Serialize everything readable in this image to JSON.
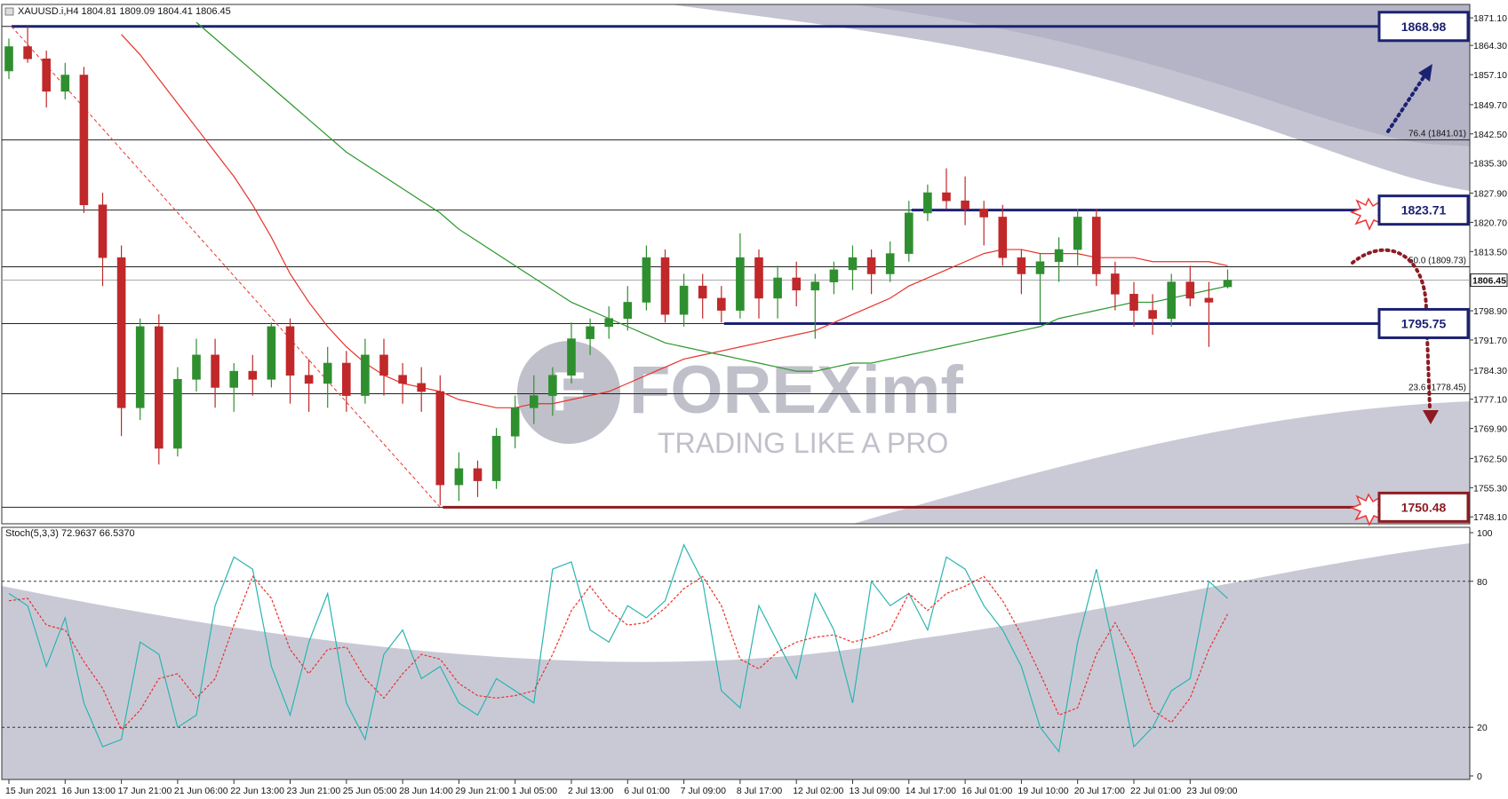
{
  "chart_data": [
    {
      "type": "candlestick",
      "title": "XAUUSD.i,H4  1804.81 1809.09 1804.41 1806.45",
      "categories": [
        "15 Jun 2021",
        null,
        null,
        "16 Jun 13:00",
        null,
        null,
        "17 Jun 21:00",
        null,
        null,
        "21 Jun 06:00",
        null,
        null,
        "22 Jun 13:00",
        null,
        null,
        "23 Jun 21:00",
        null,
        null,
        "25 Jun 05:00",
        null,
        null,
        "28 Jun 14:00",
        null,
        null,
        "29 Jun 21:00",
        null,
        null,
        "1 Jul 05:00",
        null,
        null,
        "2 Jul 13:00",
        null,
        null,
        "6 Jul 01:00",
        null,
        null,
        "7 Jul 09:00",
        null,
        null,
        "8 Jul 17:00",
        null,
        null,
        "12 Jul 02:00",
        null,
        null,
        "13 Jul 09:00",
        null,
        null,
        "14 Jul 17:00",
        null,
        null,
        "16 Jul 01:00",
        null,
        null,
        "19 Jul 10:00",
        null,
        null,
        "20 Jul 17:00",
        null,
        null,
        "22 Jul 01:00",
        null,
        null,
        "23 Jul 09:00",
        null,
        null
      ],
      "open": [
        1858,
        1864,
        1861,
        1853,
        1857,
        1825,
        1812,
        1775,
        1795,
        1765,
        1782,
        1788,
        1780,
        1784,
        1782,
        1795,
        1783,
        1781,
        1786,
        1778,
        1788,
        1783,
        1781,
        1779,
        1756,
        1760,
        1757,
        1768,
        1775,
        1778,
        1783,
        1792,
        1795,
        1797,
        1801,
        1812,
        1798,
        1805,
        1802,
        1799,
        1812,
        1802,
        1807,
        1804,
        1806,
        1809,
        1812,
        1808,
        1813,
        1823,
        1828,
        1826,
        1824,
        1822,
        1812,
        1808,
        1811,
        1814,
        1822,
        1808,
        1803,
        1799,
        1797,
        1806,
        1802,
        1804.81
      ],
      "high": [
        1866,
        1869,
        1863,
        1860,
        1859,
        1828,
        1815,
        1797,
        1798,
        1785,
        1792,
        1792,
        1786,
        1788,
        1796,
        1797,
        1787,
        1790,
        1789,
        1792,
        1792,
        1786,
        1785,
        1783,
        1764,
        1762,
        1770,
        1778,
        1783,
        1785,
        1796,
        1797,
        1800,
        1805,
        1815,
        1814,
        1808,
        1808,
        1805,
        1818,
        1814,
        1810,
        1811,
        1808,
        1811,
        1815,
        1814,
        1816,
        1826,
        1830,
        1834,
        1832,
        1826,
        1825,
        1814,
        1813,
        1817,
        1824,
        1824,
        1811,
        1806,
        1803,
        1808,
        1810,
        1806,
        1809.09
      ],
      "low": [
        1856,
        1860,
        1849,
        1851,
        1823,
        1805,
        1768,
        1772,
        1761,
        1763,
        1779,
        1775,
        1774,
        1778,
        1780,
        1776,
        1774,
        1775,
        1774,
        1776,
        1778,
        1776,
        1774,
        1751,
        1752,
        1753,
        1755,
        1765,
        1771,
        1773,
        1781,
        1788,
        1792,
        1794,
        1799,
        1796,
        1795,
        1797,
        1796,
        1797,
        1797,
        1797,
        1800,
        1792,
        1803,
        1804,
        1803,
        1806,
        1811,
        1821,
        1824,
        1820,
        1815,
        1810,
        1803,
        1796,
        1806,
        1810,
        1805,
        1799,
        1795,
        1793,
        1795,
        1800,
        1790,
        1804.41
      ],
      "close": [
        1864,
        1861,
        1853,
        1857,
        1825,
        1812,
        1775,
        1795,
        1765,
        1782,
        1788,
        1780,
        1784,
        1782,
        1795,
        1783,
        1781,
        1786,
        1778,
        1788,
        1783,
        1781,
        1779,
        1756,
        1760,
        1757,
        1768,
        1775,
        1778,
        1783,
        1792,
        1795,
        1797,
        1801,
        1812,
        1798,
        1805,
        1802,
        1799,
        1812,
        1802,
        1807,
        1804,
        1806,
        1809,
        1812,
        1808,
        1813,
        1823,
        1828,
        1826,
        1824,
        1822,
        1812,
        1808,
        1811,
        1814,
        1822,
        1808,
        1803,
        1799,
        1797,
        1806,
        1802,
        1801,
        1806.45
      ],
      "up_color": "#2f8f2f",
      "down_color": "#c0282a",
      "moving_averages": [
        {
          "color": "#e8322a",
          "values": [
            null,
            null,
            null,
            null,
            null,
            null,
            1867,
            1862,
            1856,
            1850,
            1844,
            1838,
            1832,
            1825,
            1817,
            1808,
            1801,
            1795,
            1790,
            1786,
            1783,
            1781,
            1780,
            1779,
            1777,
            1776,
            1775,
            1775,
            1776,
            1776,
            1777,
            1778,
            1779,
            1781,
            1783,
            1785,
            1787,
            1788,
            1789,
            1790,
            1791,
            1792,
            1793,
            1794,
            1796,
            1798,
            1800,
            1802,
            1805,
            1807,
            1809,
            1811,
            1813,
            1814,
            1814,
            1813,
            1813,
            1813,
            1812,
            1812,
            1812,
            1811,
            1811,
            1811,
            1811,
            1810
          ]
        },
        {
          "color": "#2a962a",
          "values": [
            null,
            null,
            null,
            null,
            null,
            null,
            null,
            null,
            null,
            null,
            1870,
            1866,
            1862,
            1858,
            1854,
            1850,
            1846,
            1842,
            1838,
            1835,
            1832,
            1829,
            1826,
            1823,
            1819,
            1816,
            1813,
            1810,
            1807,
            1804,
            1801,
            1799,
            1797,
            1795,
            1793,
            1791,
            1790,
            1789,
            1788,
            1787,
            1786,
            1785,
            1784,
            1784,
            1785,
            1786,
            1786,
            1787,
            1788,
            1789,
            1790,
            1791,
            1792,
            1793,
            1794,
            1795,
            1797,
            1798,
            1799,
            1800,
            1801,
            1801,
            1802,
            1803,
            1804,
            1805
          ]
        }
      ],
      "ylim": [
        1746.4,
        1874.4
      ],
      "yticks": [
        {
          "value": 1871.1,
          "label": "1871.10"
        },
        {
          "value": 1864.3,
          "label": "1864.30"
        },
        {
          "value": 1857.1,
          "label": "1857.10"
        },
        {
          "value": 1849.7,
          "label": "1849.70"
        },
        {
          "value": 1842.5,
          "label": "1842.50"
        },
        {
          "value": 1835.3,
          "label": "1835.30"
        },
        {
          "value": 1827.9,
          "label": "1827.90"
        },
        {
          "value": 1820.7,
          "label": "1820.70"
        },
        {
          "value": 1813.5,
          "label": "1813.50"
        },
        {
          "value": 1798.9,
          "label": "1798.90"
        },
        {
          "value": 1791.7,
          "label": "1791.70"
        },
        {
          "value": 1784.3,
          "label": "1784.30"
        },
        {
          "value": 1777.1,
          "label": "1777.10"
        },
        {
          "value": 1769.9,
          "label": "1769.90"
        },
        {
          "value": 1762.5,
          "label": "1762.50"
        },
        {
          "value": 1755.3,
          "label": "1755.30"
        },
        {
          "value": 1748.1,
          "label": "1748.10"
        }
      ],
      "current_price": 1806.45,
      "levels": [
        {
          "value": 1868.98,
          "color": "#1c2272"
        },
        {
          "value": 1823.71,
          "color": "#1c2272"
        },
        {
          "value": 1795.75,
          "color": "#1c2272"
        },
        {
          "value": 1750.48,
          "color": "#8c1c22"
        }
      ],
      "fib_levels": [
        {
          "value": 1841.01,
          "label": "76.4 (1841.01)"
        },
        {
          "value": 1809.73,
          "label": "50.0 (1809.73)"
        },
        {
          "value": 1778.45,
          "label": "23.6 (1778.45)"
        }
      ]
    },
    {
      "type": "line",
      "title": "Stoch(5,3,3) 72.9637 66.5370",
      "ylim": [
        0,
        100
      ],
      "yticks": [
        0,
        20,
        80,
        100
      ],
      "hlines": [
        20,
        80
      ],
      "series": [
        {
          "color": "#2ab5b0",
          "dashed": false,
          "values": [
            75,
            70,
            45,
            65,
            30,
            12,
            15,
            55,
            50,
            20,
            25,
            70,
            90,
            85,
            45,
            25,
            55,
            75,
            30,
            15,
            50,
            60,
            40,
            45,
            30,
            25,
            40,
            35,
            30,
            85,
            88,
            60,
            55,
            70,
            65,
            72,
            95,
            80,
            35,
            28,
            70,
            55,
            40,
            75,
            60,
            30,
            80,
            70,
            75,
            60,
            90,
            85,
            70,
            60,
            45,
            20,
            10,
            55,
            85,
            50,
            12,
            20,
            35,
            40,
            80,
            72.9637
          ]
        },
        {
          "color": "#e8322a",
          "dashed": true,
          "values": [
            72,
            73,
            62,
            60,
            47,
            36,
            19,
            27,
            40,
            42,
            32,
            40,
            62,
            82,
            73,
            52,
            42,
            52,
            53,
            40,
            32,
            42,
            50,
            48,
            38,
            33,
            32,
            33,
            35,
            50,
            68,
            78,
            68,
            62,
            63,
            69,
            77,
            82,
            70,
            48,
            44,
            51,
            55,
            57,
            58,
            55,
            57,
            60,
            75,
            68,
            75,
            78,
            82,
            72,
            58,
            42,
            25,
            28,
            50,
            63,
            49,
            27,
            22,
            32,
            52,
            66.537
          ]
        }
      ]
    }
  ],
  "watermark": {
    "brand": "FOREXimf",
    "tagline": "TRADING LIKE A PRO"
  }
}
